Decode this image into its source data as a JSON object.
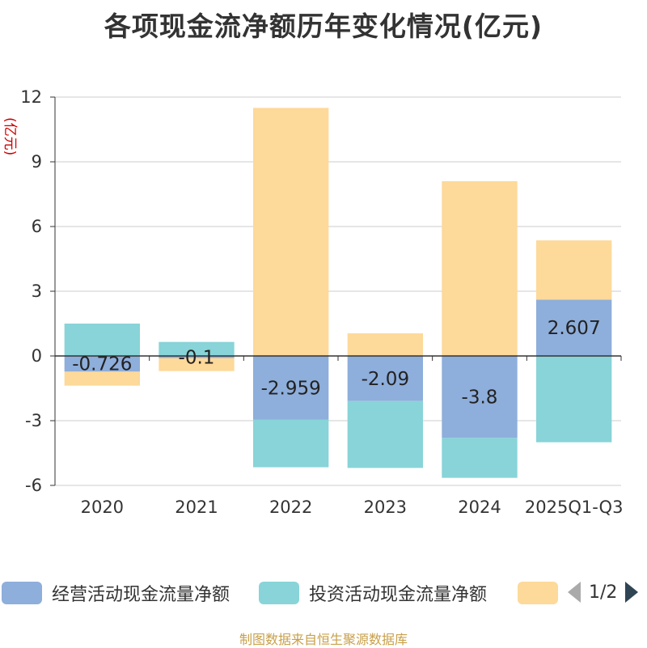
{
  "chart_data": {
    "type": "bar",
    "stacked": true,
    "title": "各项现金流净额历年变化情况(亿元)",
    "ylabel": "(亿元)",
    "categories": [
      "2020",
      "2021",
      "2022",
      "2023",
      "2024",
      "2025Q1-Q3"
    ],
    "yticks": [
      12,
      9,
      6,
      3,
      0,
      -3,
      -6
    ],
    "ytick_labels": [
      "12",
      "9",
      "6",
      "3",
      "0",
      "-3",
      "-6"
    ],
    "ylim": [
      -6,
      12
    ],
    "series": [
      {
        "name": "经营活动现金流量净额",
        "color": "#8eaedb",
        "values": [
          -0.726,
          -0.1,
          -2.959,
          -2.09,
          -3.8,
          2.607
        ],
        "labels": [
          "-0.726",
          "-0.1",
          "-2.959",
          "-2.09",
          "-3.8",
          "2.607"
        ]
      },
      {
        "name": "投资活动现金流量净额",
        "color": "#88d4d8",
        "values": [
          1.5,
          0.65,
          -2.2,
          -3.1,
          -1.85,
          -4.0
        ]
      },
      {
        "name": "",
        "color": "#fdd99a",
        "values": [
          -0.65,
          -0.6,
          11.5,
          1.05,
          8.1,
          2.75
        ]
      }
    ],
    "legend": {
      "position": "bottom",
      "page_text": "1/2"
    }
  },
  "source": "制图数据来自恒生聚源数据库",
  "colors": {
    "axis": "#333333",
    "grid": "#cccccc",
    "pager_active": "#2f4554",
    "pager_inactive": "#aaaaaa"
  }
}
